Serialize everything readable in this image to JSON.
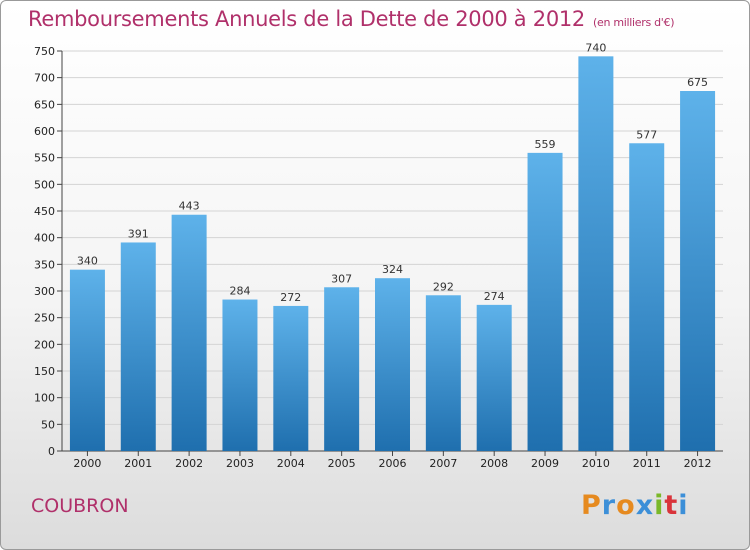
{
  "header": {
    "title": "Remboursements Annuels de la Dette de 2000 à 2012",
    "subtitle": "(en milliers d'€)"
  },
  "footer": {
    "commune": "COUBRON",
    "logo": "Proxiti"
  },
  "colors": {
    "title": "#b0306a",
    "bar_top": "#5eb2ea",
    "bar_bottom": "#1f6fae",
    "logo_letters": [
      "#e68a1f",
      "#3c8fd8",
      "#e68a1f",
      "#3c8fd8",
      "#7ab829",
      "#d9343b",
      "#3c8fd8"
    ]
  },
  "chart_data": {
    "type": "bar",
    "title": "Remboursements Annuels de la Dette de 2000 à 2012",
    "categories": [
      "2000",
      "2001",
      "2002",
      "2003",
      "2004",
      "2005",
      "2006",
      "2007",
      "2008",
      "2009",
      "2010",
      "2011",
      "2012"
    ],
    "values": [
      340,
      391,
      443,
      284,
      272,
      307,
      324,
      292,
      274,
      559,
      740,
      577,
      675
    ],
    "data_labels": [
      "340",
      "391",
      "443",
      "284",
      "272",
      "307",
      "324",
      "292",
      "274",
      "559",
      "740",
      "577",
      "675"
    ],
    "ylim": [
      0,
      750
    ],
    "yticks": [
      0,
      50,
      100,
      150,
      200,
      250,
      300,
      350,
      400,
      450,
      500,
      550,
      600,
      650,
      700,
      750
    ],
    "grid": true,
    "legend": "none"
  }
}
